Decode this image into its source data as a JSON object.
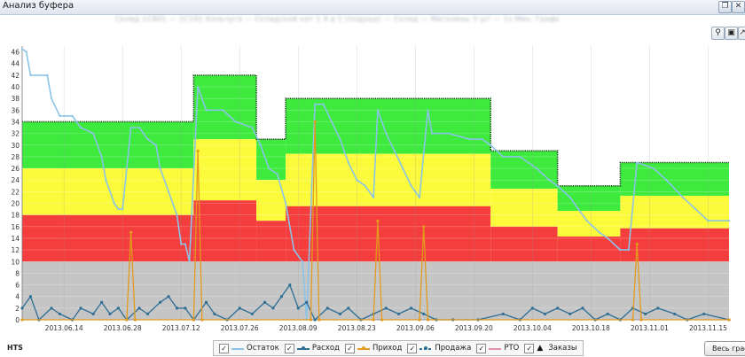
{
  "window": {
    "title": "Анализ буфера",
    "subtitle": "Склад 1С801 — 1С101 Кольчуга — Складской кат 1 4 в 1 (подуша) — Склад — Магазины 3 шт — 1з Мен. Графел — 5"
  },
  "toolbar": {
    "zoom_icon": "magnifier-icon",
    "save_icon": "floppy-disk-icon",
    "export_icon": "export-icon"
  },
  "bottom": {
    "left_label": "HTS",
    "full_chart_button": "Весь график"
  },
  "legend": [
    {
      "label": "Остаток",
      "checked": true,
      "color": "#8cc4e8",
      "marker": "line"
    },
    {
      "label": "Расход",
      "checked": true,
      "color": "#2e6e95",
      "marker": "dot-line"
    },
    {
      "label": "Приход",
      "checked": true,
      "color": "#e39a1d",
      "marker": "dot-line"
    },
    {
      "label": "Продажа",
      "checked": true,
      "color": "#2e6e95",
      "marker": "dash-dot"
    },
    {
      "label": "РТО",
      "checked": true,
      "color": "#e090b0",
      "marker": "line"
    },
    {
      "label": "Заказы",
      "checked": true,
      "color": "#111111",
      "marker": "triangle"
    }
  ],
  "chart_data": {
    "type": "area",
    "x_ticks": [
      "2013.06.14",
      "2013.06.28",
      "2013.07.12",
      "2013.07.26",
      "2013.08.09",
      "2013.08.23",
      "2013.09.06",
      "2013.09.20",
      "2013.10.04",
      "2013.10.18",
      "2013.11.01",
      "2013.11.15"
    ],
    "x_range": [
      "2013.06.04",
      "2013.11.20"
    ],
    "y_ticks": [
      0,
      2,
      4,
      6,
      8,
      10,
      12,
      14,
      16,
      18,
      20,
      22,
      24,
      26,
      28,
      30,
      32,
      34,
      36,
      38,
      40,
      42,
      44,
      46
    ],
    "ylim": [
      0,
      47
    ],
    "colors": {
      "grey": "#c5c5c5",
      "red": "#f43d3d",
      "yellow": "#fbfb3c",
      "green": "#3dea3d",
      "grid": "#dddddd"
    },
    "grey_level": 10,
    "zones": [
      {
        "from": "2013.06.04",
        "to": "2013.07.15",
        "red": 18,
        "yellow": 26,
        "green": 34
      },
      {
        "from": "2013.07.15",
        "to": "2013.07.30",
        "red": 20.5,
        "yellow": 31,
        "green": 42
      },
      {
        "from": "2013.07.30",
        "to": "2013.08.06",
        "red": 17,
        "yellow": 24,
        "green": 31
      },
      {
        "from": "2013.08.06",
        "to": "2013.09.24",
        "red": 19.5,
        "yellow": 28.5,
        "green": 38
      },
      {
        "from": "2013.09.24",
        "to": "2013.10.10",
        "red": 16,
        "yellow": 22.5,
        "green": 29
      },
      {
        "from": "2013.10.10",
        "to": "2013.10.25",
        "red": 14.3,
        "yellow": 18.7,
        "green": 23
      },
      {
        "from": "2013.10.25",
        "to": "2013.11.20",
        "red": 15.7,
        "yellow": 21.3,
        "green": 27
      }
    ],
    "series": [
      {
        "name": "Остаток",
        "color": "#8cc4e8",
        "points": [
          [
            "2013.06.04",
            46.5
          ],
          [
            "2013.06.05",
            46
          ],
          [
            "2013.06.06",
            42
          ],
          [
            "2013.06.10",
            42
          ],
          [
            "2013.06.11",
            38
          ],
          [
            "2013.06.13",
            35
          ],
          [
            "2013.06.16",
            35
          ],
          [
            "2013.06.18",
            33
          ],
          [
            "2013.06.21",
            32
          ],
          [
            "2013.06.23",
            28
          ],
          [
            "2013.06.24",
            24
          ],
          [
            "2013.06.26",
            20
          ],
          [
            "2013.06.27",
            19
          ],
          [
            "2013.06.28",
            19
          ],
          [
            "2013.06.30",
            33
          ],
          [
            "2013.07.02",
            33
          ],
          [
            "2013.07.04",
            31
          ],
          [
            "2013.07.06",
            30
          ],
          [
            "2013.07.07",
            26
          ],
          [
            "2013.07.09",
            22
          ],
          [
            "2013.07.11",
            18
          ],
          [
            "2013.07.12",
            13
          ],
          [
            "2013.07.13",
            13
          ],
          [
            "2013.07.14",
            10
          ],
          [
            "2013.07.16",
            40
          ],
          [
            "2013.07.18",
            36
          ],
          [
            "2013.07.22",
            36
          ],
          [
            "2013.07.25",
            34
          ],
          [
            "2013.07.29",
            33
          ],
          [
            "2013.07.31",
            30
          ],
          [
            "2013.08.02",
            26
          ],
          [
            "2013.08.04",
            25
          ],
          [
            "2013.08.06",
            20
          ],
          [
            "2013.08.08",
            12
          ],
          [
            "2013.08.10",
            10
          ],
          [
            "2013.08.11",
            0
          ],
          [
            "2013.08.13",
            37
          ],
          [
            "2013.08.15",
            37
          ],
          [
            "2013.08.17",
            34
          ],
          [
            "2013.08.19",
            31
          ],
          [
            "2013.08.21",
            27
          ],
          [
            "2013.08.23",
            24
          ],
          [
            "2013.08.25",
            23
          ],
          [
            "2013.08.27",
            21
          ],
          [
            "2013.08.28",
            36
          ],
          [
            "2013.08.30",
            32
          ],
          [
            "2013.09.01",
            29
          ],
          [
            "2013.09.03",
            26
          ],
          [
            "2013.09.05",
            23
          ],
          [
            "2013.09.07",
            21
          ],
          [
            "2013.09.09",
            36
          ],
          [
            "2013.09.10",
            32
          ],
          [
            "2013.09.14",
            32
          ],
          [
            "2013.09.19",
            31
          ],
          [
            "2013.09.22",
            31
          ],
          [
            "2013.09.24",
            30
          ],
          [
            "2013.09.27",
            28
          ],
          [
            "2013.10.01",
            28
          ],
          [
            "2013.10.05",
            26
          ],
          [
            "2013.10.08",
            24
          ],
          [
            "2013.10.10",
            23
          ],
          [
            "2013.10.13",
            21
          ],
          [
            "2013.10.15",
            19
          ],
          [
            "2013.10.17",
            17
          ],
          [
            "2013.10.20",
            15
          ],
          [
            "2013.10.22",
            14
          ],
          [
            "2013.10.25",
            12
          ],
          [
            "2013.10.27",
            12
          ],
          [
            "2013.10.29",
            27
          ],
          [
            "2013.11.02",
            26
          ],
          [
            "2013.11.05",
            24
          ],
          [
            "2013.11.09",
            21
          ],
          [
            "2013.11.12",
            19
          ],
          [
            "2013.11.15",
            17
          ],
          [
            "2013.11.20",
            17
          ]
        ]
      },
      {
        "name": "Расход",
        "color": "#2e6e95",
        "points": [
          [
            "2013.06.04",
            2
          ],
          [
            "2013.06.06",
            4
          ],
          [
            "2013.06.08",
            0
          ],
          [
            "2013.06.11",
            2
          ],
          [
            "2013.06.13",
            1
          ],
          [
            "2013.06.16",
            0
          ],
          [
            "2013.06.18",
            2
          ],
          [
            "2013.06.21",
            1
          ],
          [
            "2013.06.23",
            3
          ],
          [
            "2013.06.25",
            1
          ],
          [
            "2013.06.27",
            2
          ],
          [
            "2013.06.29",
            0
          ],
          [
            "2013.07.02",
            2
          ],
          [
            "2013.07.04",
            1
          ],
          [
            "2013.07.07",
            3
          ],
          [
            "2013.07.09",
            4
          ],
          [
            "2013.07.11",
            2
          ],
          [
            "2013.07.13",
            2
          ],
          [
            "2013.07.15",
            0
          ],
          [
            "2013.07.18",
            3
          ],
          [
            "2013.07.20",
            1
          ],
          [
            "2013.07.23",
            0
          ],
          [
            "2013.07.26",
            2
          ],
          [
            "2013.07.29",
            1
          ],
          [
            "2013.08.01",
            3
          ],
          [
            "2013.08.03",
            2
          ],
          [
            "2013.08.05",
            4
          ],
          [
            "2013.08.07",
            6
          ],
          [
            "2013.08.09",
            2
          ],
          [
            "2013.08.11",
            3
          ],
          [
            "2013.08.13",
            0
          ],
          [
            "2013.08.16",
            2
          ],
          [
            "2013.08.19",
            1
          ],
          [
            "2013.08.21",
            2
          ],
          [
            "2013.08.24",
            0
          ],
          [
            "2013.08.27",
            1
          ],
          [
            "2013.08.30",
            2
          ],
          [
            "2013.09.02",
            1
          ],
          [
            "2013.09.05",
            2
          ],
          [
            "2013.09.08",
            1
          ],
          [
            "2013.09.11",
            0
          ],
          [
            "2013.09.15",
            0
          ],
          [
            "2013.09.21",
            0
          ],
          [
            "2013.09.27",
            1
          ],
          [
            "2013.10.01",
            0
          ],
          [
            "2013.10.04",
            2
          ],
          [
            "2013.10.07",
            1
          ],
          [
            "2013.10.10",
            2
          ],
          [
            "2013.10.13",
            1
          ],
          [
            "2013.10.16",
            2
          ],
          [
            "2013.10.19",
            0
          ],
          [
            "2013.10.22",
            1
          ],
          [
            "2013.10.25",
            0
          ],
          [
            "2013.10.28",
            2
          ],
          [
            "2013.10.31",
            1
          ],
          [
            "2013.11.03",
            2
          ],
          [
            "2013.11.07",
            1
          ],
          [
            "2013.11.10",
            0
          ],
          [
            "2013.11.14",
            1
          ],
          [
            "2013.11.20",
            0
          ]
        ]
      },
      {
        "name": "Приход",
        "color": "#e39a1d",
        "points": [
          [
            "2013.06.04",
            0
          ],
          [
            "2013.06.29",
            0
          ],
          [
            "2013.06.30",
            15
          ],
          [
            "2013.07.01",
            0
          ],
          [
            "2013.07.15",
            0
          ],
          [
            "2013.07.16",
            29
          ],
          [
            "2013.07.17",
            0
          ],
          [
            "2013.08.12",
            0
          ],
          [
            "2013.08.13",
            34
          ],
          [
            "2013.08.14",
            0
          ],
          [
            "2013.08.27",
            0
          ],
          [
            "2013.08.28",
            17
          ],
          [
            "2013.08.29",
            0
          ],
          [
            "2013.09.07",
            0
          ],
          [
            "2013.09.08",
            16
          ],
          [
            "2013.09.09",
            0
          ],
          [
            "2013.10.28",
            0
          ],
          [
            "2013.10.29",
            13
          ],
          [
            "2013.10.30",
            0
          ],
          [
            "2013.11.20",
            0
          ]
        ]
      },
      {
        "name": "РТО",
        "color": "#e090b0",
        "points": []
      },
      {
        "name": "Продажа",
        "color": "#2e6e95",
        "points": []
      },
      {
        "name": "Заказы",
        "color": "#111111",
        "points": []
      }
    ]
  }
}
